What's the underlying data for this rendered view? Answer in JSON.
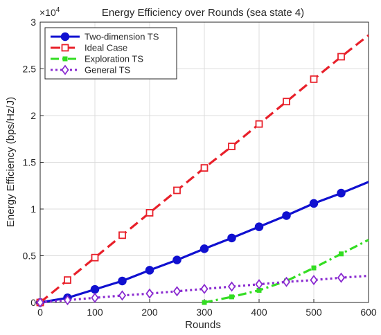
{
  "chart_data": {
    "type": "line",
    "title": "Energy Efficiency over Rounds (sea state 4)",
    "xlabel": "Rounds",
    "ylabel": "Energy Efficiency (bps/Hz/J)",
    "y_multiplier_label": "×10",
    "y_multiplier_exponent": "4",
    "xlim": [
      0,
      600
    ],
    "ylim": [
      0,
      3
    ],
    "xticks": [
      0,
      100,
      200,
      300,
      400,
      500,
      600
    ],
    "yticks": [
      0,
      0.5,
      1,
      1.5,
      2,
      2.5,
      3
    ],
    "xtick_labels": [
      "0",
      "100",
      "200",
      "300",
      "400",
      "500",
      "600"
    ],
    "ytick_labels": [
      "0",
      "0.5",
      "1",
      "1.5",
      "2",
      "2.5",
      "3"
    ],
    "grid": true,
    "legend_position": "top-left",
    "series": [
      {
        "name": "Two-dimension TS",
        "color": "#1010d0",
        "line_style": "solid",
        "marker": "circle",
        "x": [
          0,
          50,
          100,
          150,
          200,
          250,
          300,
          350,
          400,
          450,
          500,
          550,
          600
        ],
        "values": [
          0,
          0.05,
          0.14,
          0.23,
          0.345,
          0.455,
          0.575,
          0.69,
          0.81,
          0.93,
          1.06,
          1.17,
          1.29
        ],
        "marker_x": [
          0,
          50,
          100,
          150,
          200,
          250,
          300,
          350,
          400,
          450,
          500,
          550
        ],
        "marker_values": [
          0,
          0.05,
          0.14,
          0.23,
          0.345,
          0.455,
          0.575,
          0.69,
          0.81,
          0.93,
          1.06,
          1.17
        ]
      },
      {
        "name": "Ideal Case",
        "color": "#e8202a",
        "line_style": "dashed",
        "marker": "square",
        "x": [
          0,
          50,
          100,
          150,
          200,
          250,
          300,
          350,
          400,
          450,
          500,
          550,
          600
        ],
        "values": [
          0,
          0.24,
          0.48,
          0.72,
          0.96,
          1.2,
          1.44,
          1.67,
          1.91,
          2.15,
          2.39,
          2.63,
          2.86
        ],
        "marker_x": [
          0,
          50,
          100,
          150,
          200,
          250,
          300,
          350,
          400,
          450,
          500,
          550
        ],
        "marker_values": [
          0,
          0.24,
          0.48,
          0.72,
          0.96,
          1.2,
          1.44,
          1.67,
          1.91,
          2.15,
          2.39,
          2.63
        ]
      },
      {
        "name": "Exploration TS",
        "color": "#33dd22",
        "line_style": "dashdot",
        "marker": "dot",
        "x": [
          300,
          350,
          400,
          450,
          500,
          550,
          600
        ],
        "values": [
          0,
          0.06,
          0.13,
          0.23,
          0.37,
          0.52,
          0.67
        ],
        "marker_x": [
          300,
          350,
          400,
          450,
          500,
          550
        ],
        "marker_values": [
          0,
          0.06,
          0.13,
          0.23,
          0.37,
          0.52
        ]
      },
      {
        "name": "General TS",
        "color": "#8a2bd0",
        "line_style": "dotted",
        "marker": "diamond",
        "x": [
          0,
          50,
          100,
          150,
          200,
          250,
          300,
          350,
          400,
          450,
          500,
          550,
          600
        ],
        "values": [
          0,
          0.025,
          0.05,
          0.075,
          0.095,
          0.12,
          0.145,
          0.17,
          0.195,
          0.22,
          0.24,
          0.265,
          0.285
        ],
        "marker_x": [
          0,
          50,
          100,
          150,
          200,
          250,
          300,
          350,
          400,
          450,
          500,
          550
        ],
        "marker_values": [
          0,
          0.025,
          0.05,
          0.075,
          0.095,
          0.12,
          0.145,
          0.17,
          0.195,
          0.22,
          0.24,
          0.265
        ]
      }
    ]
  }
}
